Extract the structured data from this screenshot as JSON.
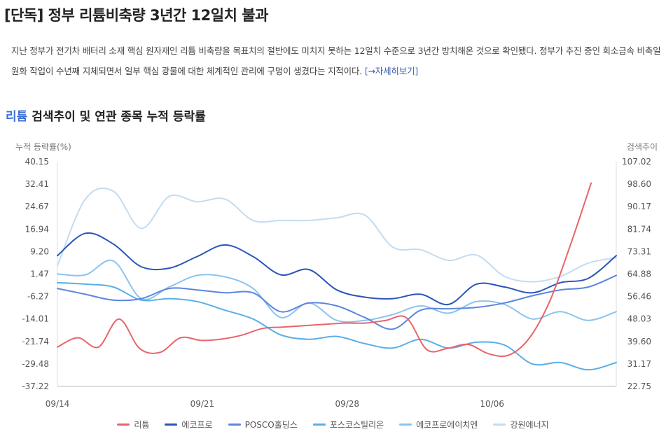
{
  "headline": "[단독] 정부 리튬비축량 3년간 12일치 불과",
  "summary": {
    "text": "지난 정부가 전기차 배터리 소재 핵심 원자재인 리튬 비축량을 목표치의 절반에도 미치지 못하는 12일치 수준으로 3년간 방치해온 것으로 확인됐다. 정부가 추진 중인 희소금속 비축일원화 작업이 수년째 지체되면서 일부 핵심 광물에 대한 체계적인 관리에 구멍이 생겼다는 지적이다.",
    "more": "[→자세히보기]"
  },
  "chart_heading": {
    "keyword": "리튬",
    "rest": "검색추이 및 연관 종목 누적 등락률"
  },
  "chart_data": {
    "type": "line",
    "ylabel": "누적 등락률(%)",
    "y2label": "검색추이",
    "ylim": [
      -37.22,
      40.15
    ],
    "y2lim": [
      22.75,
      107.02
    ],
    "yticks": [
      "40.15",
      "32.41",
      "24.67",
      "16.94",
      "9.20",
      "1.47",
      "-6.27",
      "-14.01",
      "-21.74",
      "-29.48",
      "-37.22"
    ],
    "y2ticks": [
      "107.02",
      "98.60",
      "90.17",
      "81.74",
      "73.31",
      "64.88",
      "56.46",
      "48.03",
      "39.60",
      "31.17",
      "22.75"
    ],
    "x_ticks": [
      "09/14",
      "09/21",
      "09/28",
      "10/06"
    ],
    "x_tick_index": [
      0,
      7,
      14,
      21
    ],
    "x_count": 28,
    "grid": false,
    "legend_position": "bottom",
    "series": [
      {
        "name": "리튬",
        "color": "#e8646b",
        "axis": "right",
        "values": [
          37.5,
          41,
          37.5,
          48,
          37,
          35.5,
          41,
          40,
          40.5,
          42,
          44.5,
          45,
          45.5,
          46,
          46.5,
          46.5,
          47.5,
          48.5,
          36.5,
          37,
          38.5,
          35,
          34.5,
          41,
          55,
          76,
          99
        ]
      },
      {
        "name": "에코프로",
        "color": "#2a55b8",
        "axis": "left",
        "values": [
          7.8,
          15.5,
          11.8,
          4,
          3.5,
          7.5,
          11.5,
          7.5,
          1.2,
          3,
          -4,
          -6.5,
          -7,
          -5.5,
          -9,
          -2,
          -3,
          -5,
          -1.5,
          0,
          7.8
        ]
      },
      {
        "name": "POSCO홀딩스",
        "color": "#5b86e0",
        "axis": "left",
        "values": [
          -3.5,
          -5.5,
          -7.5,
          -7,
          -3.5,
          -4,
          -5,
          -5,
          -11.5,
          -8.5,
          -9.5,
          -13.5,
          -17.5,
          -11,
          -10.5,
          -10,
          -8.5,
          -6,
          -4,
          -3,
          1
        ]
      },
      {
        "name": "포스코스틸리온",
        "color": "#5aaee8",
        "axis": "left",
        "values": [
          -1.5,
          -2,
          -3,
          -7.5,
          -7,
          -8,
          -11,
          -14,
          -19.5,
          -21,
          -20,
          -22.5,
          -24,
          -21,
          -24,
          -22,
          -23,
          -29.5,
          -29,
          -31.5,
          -29
        ]
      },
      {
        "name": "에코프로에이치엔",
        "color": "#8cc4ee",
        "axis": "left",
        "values": [
          1.5,
          1.2,
          6,
          -7,
          -3,
          1,
          0.5,
          -3.5,
          -13.5,
          -8.5,
          -14.5,
          -14.5,
          -12.5,
          -9.5,
          -12,
          -8,
          -9,
          -14,
          -11.5,
          -14.5,
          -11.5
        ]
      },
      {
        "name": "강원에너지",
        "color": "#c2dcf2",
        "axis": "right",
        "values": [
          68,
          93,
          96,
          82,
          94,
          92,
          93,
          85,
          85,
          85,
          86,
          87,
          75,
          74,
          70,
          72,
          64,
          62,
          64,
          69,
          71
        ]
      }
    ]
  },
  "legend": [
    {
      "label": "리튬",
      "color": "#e8646b"
    },
    {
      "label": "에코프로",
      "color": "#2a55b8"
    },
    {
      "label": "POSCO홀딩스",
      "color": "#5b86e0"
    },
    {
      "label": "포스코스틸리온",
      "color": "#5aaee8"
    },
    {
      "label": "에코프로에이치엔",
      "color": "#8cc4ee"
    },
    {
      "label": "강원에너지",
      "color": "#c2dcf2"
    }
  ]
}
